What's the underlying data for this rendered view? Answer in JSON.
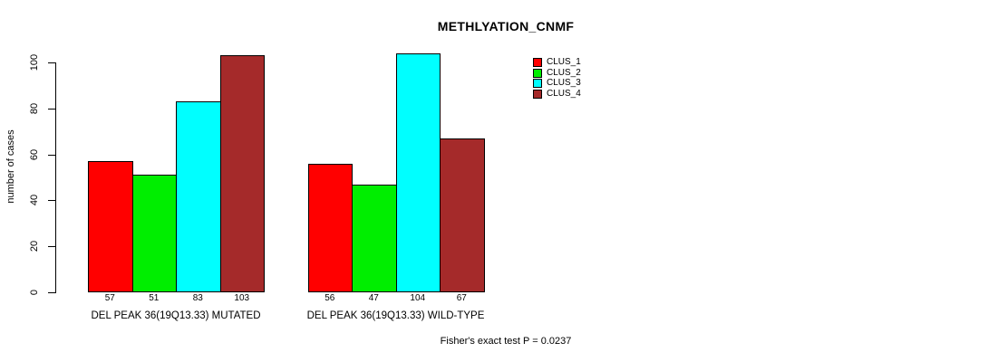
{
  "chart_data": {
    "type": "bar",
    "title": "METHLYATION_CNMF",
    "ylabel": "number of cases",
    "xlabel": "",
    "ylim": [
      0,
      100
    ],
    "yticks": [
      0,
      20,
      40,
      60,
      80,
      100
    ],
    "grid": false,
    "legend_position": "top-right",
    "bar_value_labels": true,
    "categories": [
      "DEL PEAK 36(19Q13.33) MUTATED",
      "DEL PEAK 36(19Q13.33) WILD-TYPE"
    ],
    "series": [
      {
        "name": "CLUS_1",
        "color": "#ff0000",
        "values": [
          57,
          56
        ]
      },
      {
        "name": "CLUS_2",
        "color": "#00ee00",
        "values": [
          51,
          47
        ]
      },
      {
        "name": "CLUS_3",
        "color": "#00ffff",
        "values": [
          83,
          104
        ]
      },
      {
        "name": "CLUS_4",
        "color": "#a52a2a",
        "values": [
          103,
          67
        ]
      }
    ],
    "annotation": "Fisher's exact test P = 0.0237"
  }
}
